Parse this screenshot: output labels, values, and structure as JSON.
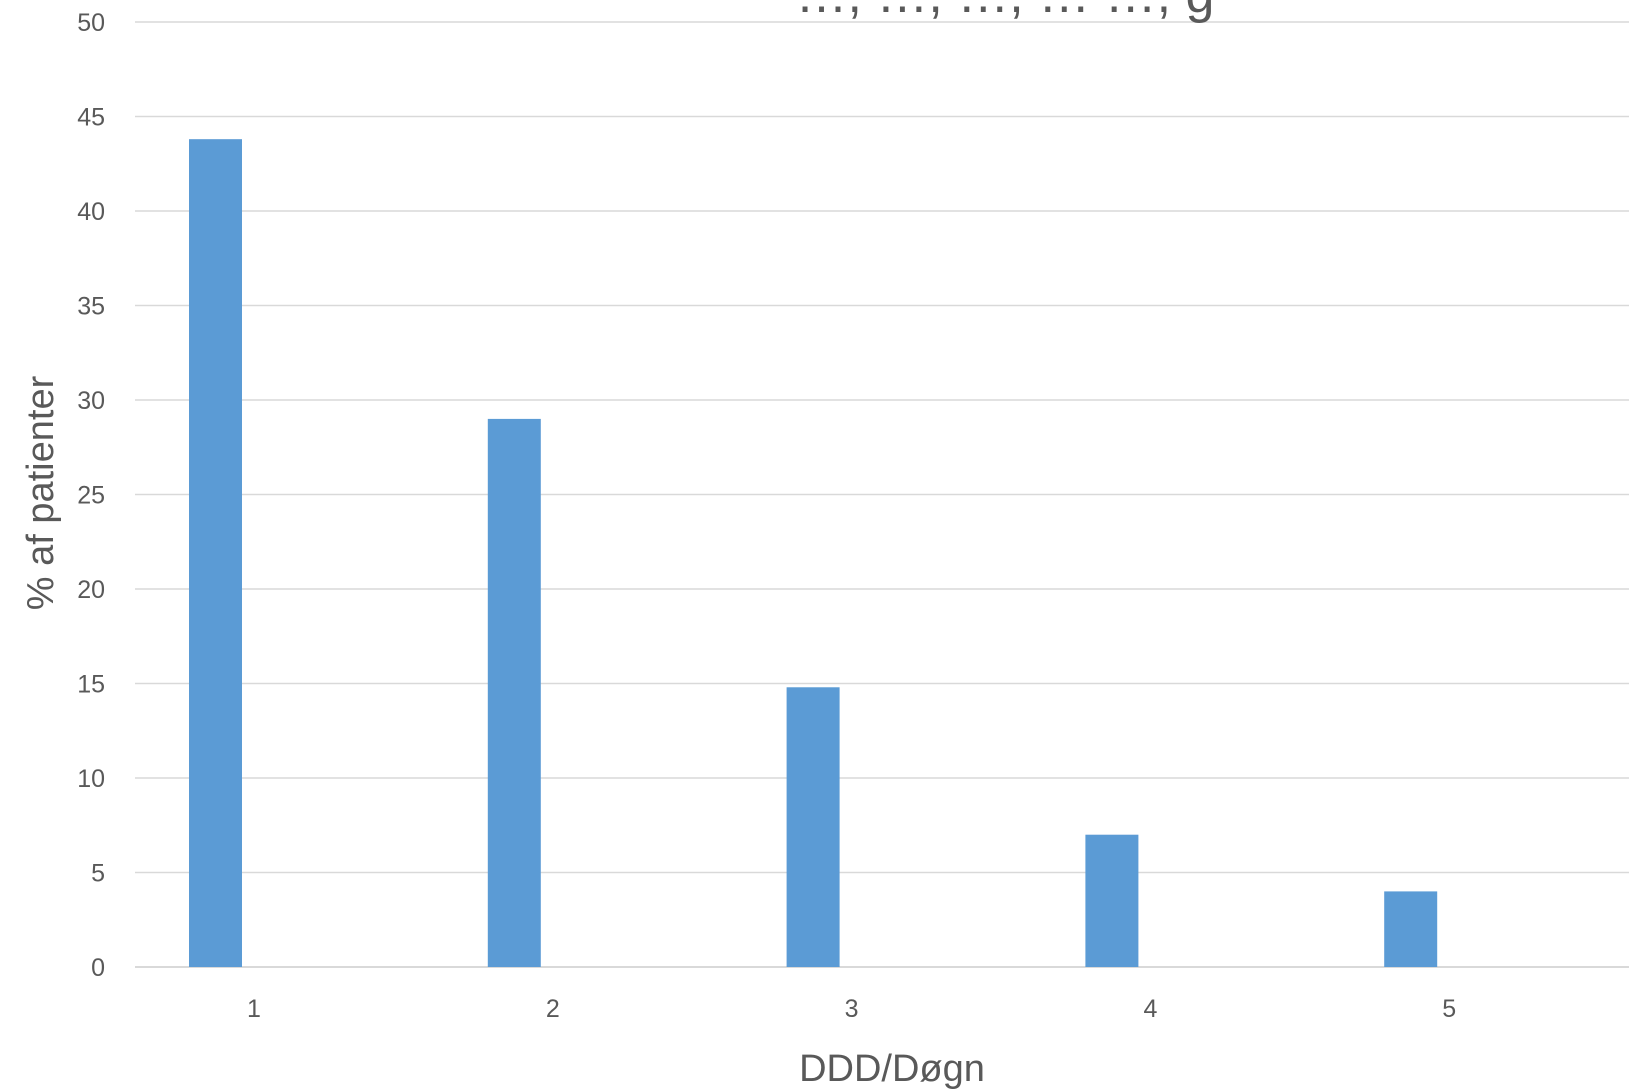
{
  "chart_data": {
    "type": "bar",
    "title": "…, …, …, … …, g",
    "categories": [
      "1",
      "2",
      "3",
      "4",
      "5"
    ],
    "series": [
      {
        "values": [
          43.8,
          29.0,
          14.8,
          7.0,
          4.0
        ]
      }
    ],
    "xlabel": "DDD/Døgn",
    "ylabel": "% af patienter",
    "ylim": [
      0,
      50
    ],
    "yticks": [
      "0",
      "5",
      "10",
      "15",
      "20",
      "25",
      "30",
      "35",
      "40",
      "45",
      "50"
    ],
    "grid": true,
    "legend": "none",
    "colors": {
      "bar": "#5B9BD5",
      "grid": "#D9D9D9",
      "text": "#595959"
    }
  }
}
